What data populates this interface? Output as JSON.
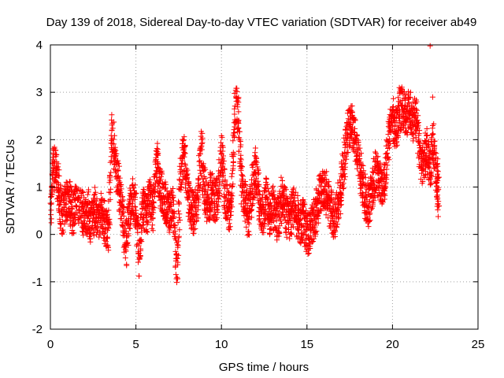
{
  "chart_data": {
    "type": "scatter",
    "title": "Day 139 of 2018, Sidereal Day-to-day VTEC variation (SDTVAR) for receiver ab49",
    "xlabel": "GPS time / hours",
    "ylabel": "SDTVAR / TECUs",
    "xlim": [
      0,
      25
    ],
    "ylim": [
      -2,
      4
    ],
    "x_ticks": [
      0,
      5,
      10,
      15,
      20,
      25
    ],
    "y_ticks": [
      -2,
      -1,
      0,
      1,
      2,
      3,
      4
    ],
    "x_tick_labels": [
      "0",
      "5",
      "10",
      "15",
      "20",
      "25"
    ],
    "y_tick_labels": [
      "-2",
      "-1",
      "0",
      "1",
      "2",
      "3",
      "4"
    ],
    "grid": true,
    "marker": "+",
    "series": [
      {
        "name": "SDTVAR",
        "color": "#ff0000",
        "trace": [
          [
            0.0,
            0.3
          ],
          [
            0.15,
            1.6
          ],
          [
            0.35,
            1.3
          ],
          [
            0.5,
            0.8
          ],
          [
            0.7,
            0.4
          ],
          [
            0.9,
            0.7
          ],
          [
            1.1,
            0.8
          ],
          [
            1.3,
            0.4
          ],
          [
            1.5,
            0.7
          ],
          [
            1.8,
            0.6
          ],
          [
            2.0,
            0.3
          ],
          [
            2.2,
            0.5
          ],
          [
            2.4,
            0.2
          ],
          [
            2.6,
            0.6
          ],
          [
            2.8,
            0.3
          ],
          [
            3.0,
            0.5
          ],
          [
            3.2,
            0.2
          ],
          [
            3.4,
            0.0
          ],
          [
            3.6,
            2.2
          ],
          [
            3.8,
            1.5
          ],
          [
            4.0,
            1.0
          ],
          [
            4.2,
            0.5
          ],
          [
            4.4,
            -0.3
          ],
          [
            4.6,
            0.4
          ],
          [
            4.8,
            0.8
          ],
          [
            5.0,
            0.5
          ],
          [
            5.2,
            -0.5
          ],
          [
            5.4,
            0.6
          ],
          [
            5.6,
            0.4
          ],
          [
            5.8,
            0.8
          ],
          [
            6.0,
            0.5
          ],
          [
            6.2,
            1.6
          ],
          [
            6.4,
            1.0
          ],
          [
            6.6,
            0.8
          ],
          [
            6.8,
            0.6
          ],
          [
            7.0,
            0.4
          ],
          [
            7.2,
            0.7
          ],
          [
            7.4,
            -0.9
          ],
          [
            7.6,
            1.2
          ],
          [
            7.8,
            1.7
          ],
          [
            8.0,
            0.9
          ],
          [
            8.2,
            0.6
          ],
          [
            8.4,
            0.4
          ],
          [
            8.6,
            0.7
          ],
          [
            8.8,
            1.9
          ],
          [
            9.0,
            1.0
          ],
          [
            9.2,
            0.6
          ],
          [
            9.4,
            0.9
          ],
          [
            9.6,
            0.7
          ],
          [
            9.8,
            0.8
          ],
          [
            10.0,
            1.8
          ],
          [
            10.2,
            0.9
          ],
          [
            10.4,
            0.5
          ],
          [
            10.6,
            0.7
          ],
          [
            10.8,
            2.8
          ],
          [
            11.0,
            2.4
          ],
          [
            11.2,
            1.0
          ],
          [
            11.4,
            0.6
          ],
          [
            11.6,
            0.3
          ],
          [
            11.8,
            1.0
          ],
          [
            12.0,
            1.4
          ],
          [
            12.2,
            0.7
          ],
          [
            12.4,
            0.3
          ],
          [
            12.6,
            0.9
          ],
          [
            12.8,
            0.4
          ],
          [
            13.0,
            0.6
          ],
          [
            13.2,
            0.2
          ],
          [
            13.4,
            0.5
          ],
          [
            13.6,
            0.9
          ],
          [
            13.8,
            0.4
          ],
          [
            14.0,
            0.3
          ],
          [
            14.2,
            0.6
          ],
          [
            14.4,
            0.4
          ],
          [
            14.6,
            0.2
          ],
          [
            14.8,
            0.3
          ],
          [
            15.0,
            0.0
          ],
          [
            15.2,
            0.1
          ],
          [
            15.4,
            0.3
          ],
          [
            15.6,
            0.6
          ],
          [
            15.8,
            0.9
          ],
          [
            16.0,
            1.0
          ],
          [
            16.2,
            0.8
          ],
          [
            16.4,
            0.5
          ],
          [
            16.6,
            0.3
          ],
          [
            16.8,
            0.6
          ],
          [
            17.0,
            1.0
          ],
          [
            17.2,
            1.6
          ],
          [
            17.4,
            2.2
          ],
          [
            17.6,
            2.3
          ],
          [
            17.8,
            2.0
          ],
          [
            18.0,
            1.6
          ],
          [
            18.2,
            1.2
          ],
          [
            18.4,
            0.8
          ],
          [
            18.6,
            0.6
          ],
          [
            18.8,
            0.9
          ],
          [
            19.0,
            1.3
          ],
          [
            19.2,
            1.2
          ],
          [
            19.4,
            1.0
          ],
          [
            19.6,
            1.3
          ],
          [
            19.8,
            2.0
          ],
          [
            20.0,
            2.5
          ],
          [
            20.2,
            2.2
          ],
          [
            20.4,
            2.6
          ],
          [
            20.6,
            2.7
          ],
          [
            20.8,
            2.5
          ],
          [
            21.0,
            2.6
          ],
          [
            21.2,
            2.4
          ],
          [
            21.4,
            2.5
          ],
          [
            21.6,
            1.6
          ],
          [
            21.8,
            1.5
          ],
          [
            22.0,
            1.8
          ],
          [
            22.2,
            1.4
          ],
          [
            22.4,
            1.9
          ],
          [
            22.6,
            1.2
          ],
          [
            22.7,
            0.7
          ]
        ],
        "outliers": [
          [
            22.2,
            3.98
          ],
          [
            22.35,
            2.9
          ],
          [
            20.4,
            3.1
          ],
          [
            20.45,
            3.05
          ]
        ]
      }
    ]
  }
}
